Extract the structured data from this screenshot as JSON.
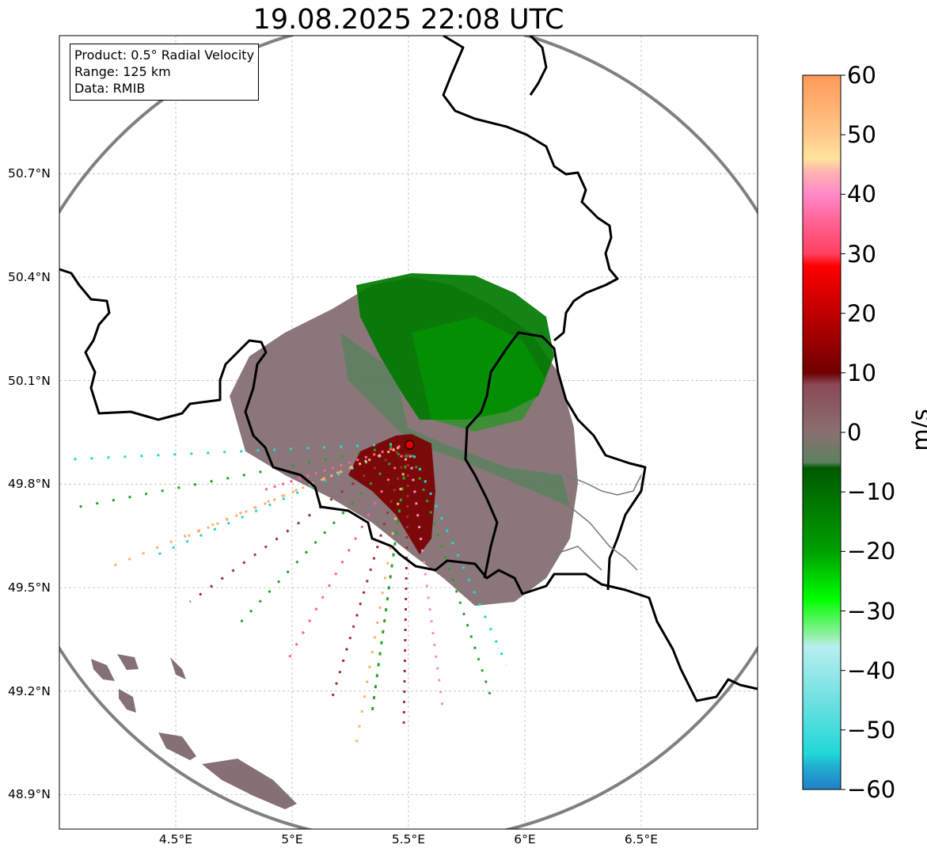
{
  "title": "19.08.2025 22:08 UTC",
  "info": {
    "product": "Product: 0.5° Radial Velocity",
    "range": "Range: 125 km",
    "data": "Data: RMIB"
  },
  "map": {
    "lon_range": [
      4.0,
      7.0
    ],
    "lat_range": [
      48.8,
      51.1
    ],
    "lat_ticks": [
      "50.7°N",
      "50.4°N",
      "50.1°N",
      "49.8°N",
      "49.5°N",
      "49.2°N",
      "48.9°N"
    ],
    "lat_values": [
      50.7,
      50.4,
      50.1,
      49.8,
      49.5,
      49.2,
      48.9
    ],
    "lon_ticks": [
      "4.5°E",
      "5°E",
      "5.5°E",
      "6°E",
      "6.5°E"
    ],
    "lon_values": [
      4.5,
      5.0,
      5.5,
      6.0,
      6.5
    ],
    "radar_site": {
      "lon": 5.505,
      "lat": 49.914
    },
    "range_ring_color": "#808080",
    "border_color": "#000000",
    "site_marker_color": "#e00000"
  },
  "colorbar": {
    "unit": "m/s",
    "vmin": -60,
    "vmax": 60,
    "ticks": [
      "60",
      "50",
      "40",
      "30",
      "20",
      "10",
      "0",
      "−10",
      "−20",
      "−30",
      "−40",
      "−50",
      "−60"
    ],
    "tick_values": [
      60,
      50,
      40,
      30,
      20,
      10,
      0,
      -10,
      -20,
      -30,
      -40,
      -50,
      -60
    ],
    "stops": [
      {
        "v": 60,
        "c": "#ff9a5a"
      },
      {
        "v": 55,
        "c": "#ffb070"
      },
      {
        "v": 50,
        "c": "#ffc88a"
      },
      {
        "v": 46,
        "c": "#ffe49a"
      },
      {
        "v": 44,
        "c": "#ffb6b0"
      },
      {
        "v": 40,
        "c": "#ff88c8"
      },
      {
        "v": 35,
        "c": "#ff6090"
      },
      {
        "v": 30,
        "c": "#ff4060"
      },
      {
        "v": 28,
        "c": "#ff0000"
      },
      {
        "v": 20,
        "c": "#c00000"
      },
      {
        "v": 10,
        "c": "#700000"
      },
      {
        "v": 8,
        "c": "#8a4a55"
      },
      {
        "v": 0,
        "c": "#8a7070"
      },
      {
        "v": -5,
        "c": "#5e8060"
      },
      {
        "v": -6,
        "c": "#005a00"
      },
      {
        "v": -20,
        "c": "#00a000"
      },
      {
        "v": -28,
        "c": "#00ff00"
      },
      {
        "v": -34,
        "c": "#90f0a0"
      },
      {
        "v": -36,
        "c": "#b8eef0"
      },
      {
        "v": -45,
        "c": "#70e0e0"
      },
      {
        "v": -54,
        "c": "#20d8d8"
      },
      {
        "v": -56,
        "c": "#20b0d0"
      },
      {
        "v": -60,
        "c": "#2080c8"
      }
    ]
  }
}
